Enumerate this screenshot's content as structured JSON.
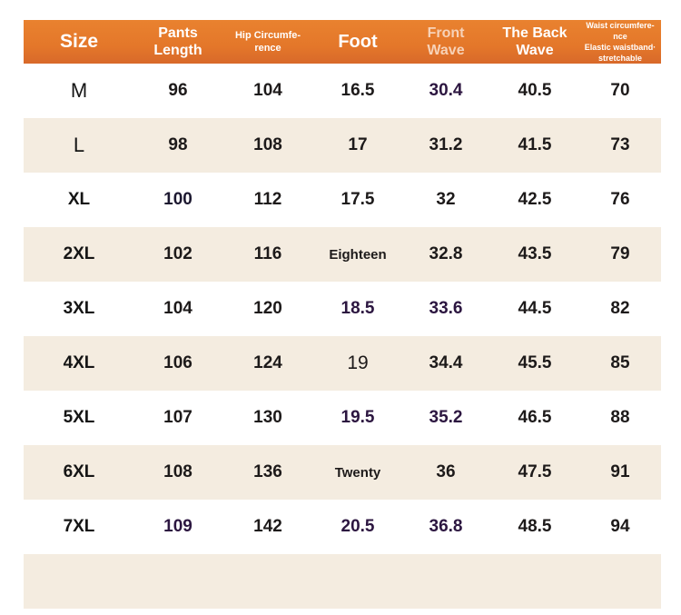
{
  "headers": {
    "size": "Size",
    "pants_length": [
      "Pants",
      "Length"
    ],
    "hip": [
      "Hip Circumfe-",
      "rence"
    ],
    "foot": "Foot",
    "front_wave": [
      "Front",
      "Wave"
    ],
    "back_wave": [
      "The Back",
      "Wave"
    ],
    "waist": [
      "Waist circumfere-",
      "nce",
      "Elastic waistband·",
      "stretchable"
    ]
  },
  "header_color": "#e4772a",
  "stripe_color": "#f4ece0",
  "rows": [
    {
      "size": "M",
      "pants": "96",
      "hip": "104",
      "foot": "16.5",
      "front": "30.4",
      "back": "40.5",
      "waist": "70"
    },
    {
      "size": "L",
      "pants": "98",
      "hip": "108",
      "foot": "17",
      "front": "31.2",
      "back": "41.5",
      "waist": "73"
    },
    {
      "size": "XL",
      "pants": "100",
      "hip": "112",
      "foot": "17.5",
      "front": "32",
      "back": "42.5",
      "waist": "76"
    },
    {
      "size": "2XL",
      "pants": "102",
      "hip": "116",
      "foot": "Eighteen",
      "front": "32.8",
      "back": "43.5",
      "waist": "79"
    },
    {
      "size": "3XL",
      "pants": "104",
      "hip": "120",
      "foot": "18.5",
      "front": "33.6",
      "back": "44.5",
      "waist": "82"
    },
    {
      "size": "4XL",
      "pants": "106",
      "hip": "124",
      "foot": "19",
      "front": "34.4",
      "back": "45.5",
      "waist": "85"
    },
    {
      "size": "5XL",
      "pants": "107",
      "hip": "130",
      "foot": "19.5",
      "front": "35.2",
      "back": "46.5",
      "waist": "88"
    },
    {
      "size": "6XL",
      "pants": "108",
      "hip": "136",
      "foot": "Twenty",
      "front": "36",
      "back": "47.5",
      "waist": "91"
    },
    {
      "size": "7XL",
      "pants": "109",
      "hip": "142",
      "foot": "20.5",
      "front": "36.8",
      "back": "48.5",
      "waist": "94"
    }
  ]
}
